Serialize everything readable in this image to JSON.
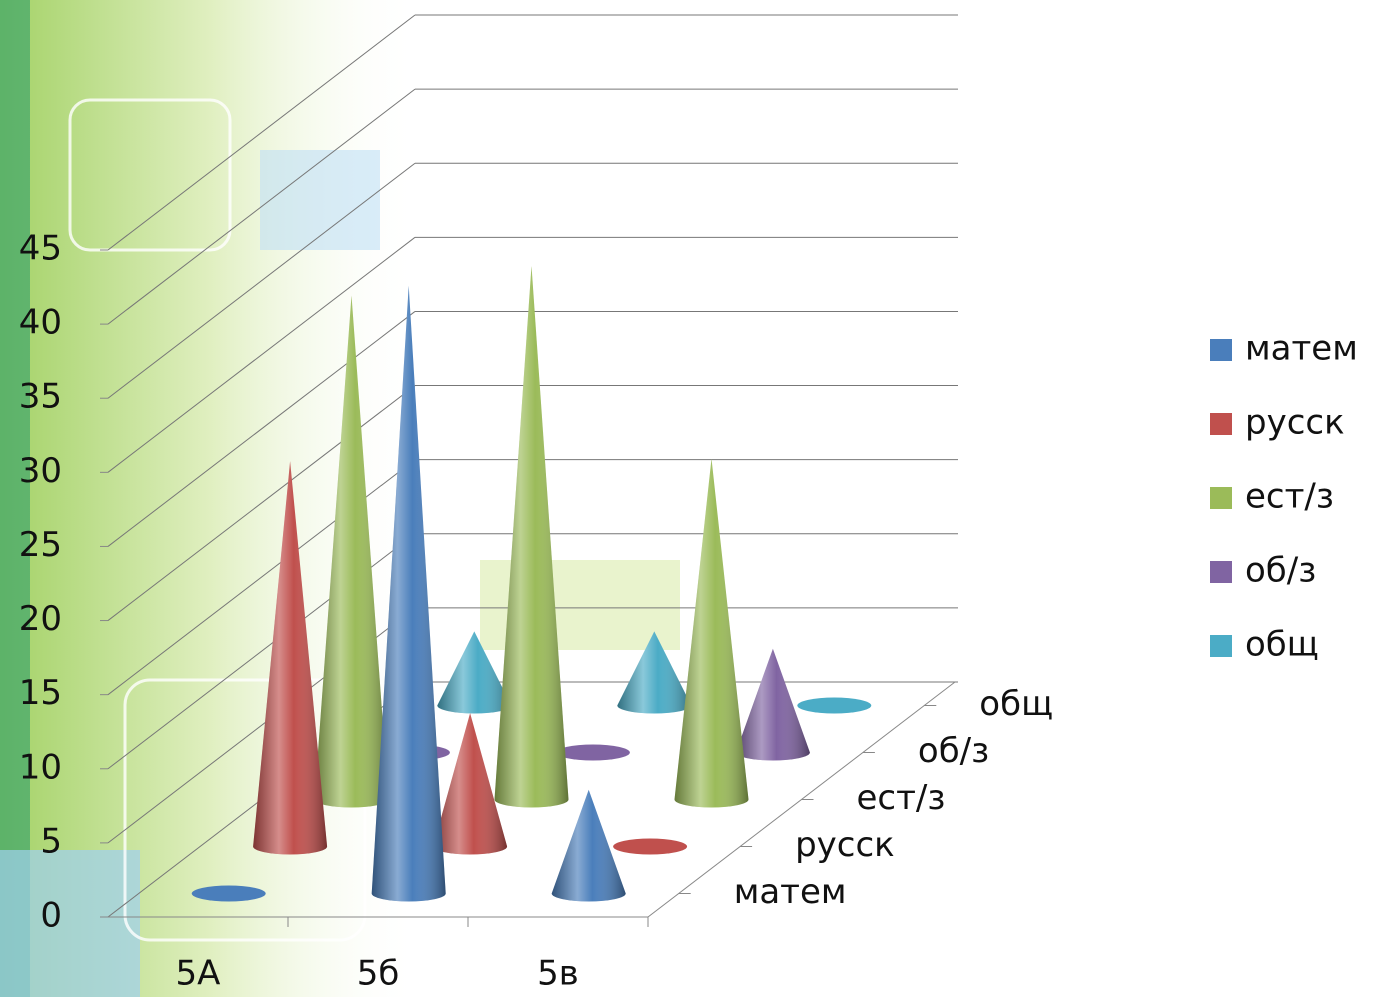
{
  "chart_data": {
    "type": "cone3d",
    "categories": [
      "5А",
      "5б",
      "5в"
    ],
    "series": [
      {
        "name": "матем",
        "color": "#4a7ebb",
        "values": [
          0,
          41,
          7
        ]
      },
      {
        "name": "русск",
        "color": "#c0504d",
        "values": [
          26,
          9,
          0
        ]
      },
      {
        "name": "ест/з",
        "color": "#9bbb59",
        "values": [
          34,
          36,
          23
        ]
      },
      {
        "name": "об/з",
        "color": "#8064a2",
        "values": [
          0,
          0,
          7
        ]
      },
      {
        "name": "общ",
        "color": "#4bacc6",
        "values": [
          5,
          5,
          0
        ]
      }
    ],
    "ylim": [
      0,
      45
    ],
    "yticks": [
      0,
      5,
      10,
      15,
      20,
      25,
      30,
      35,
      40,
      45
    ],
    "grid": true,
    "legend": "right"
  }
}
